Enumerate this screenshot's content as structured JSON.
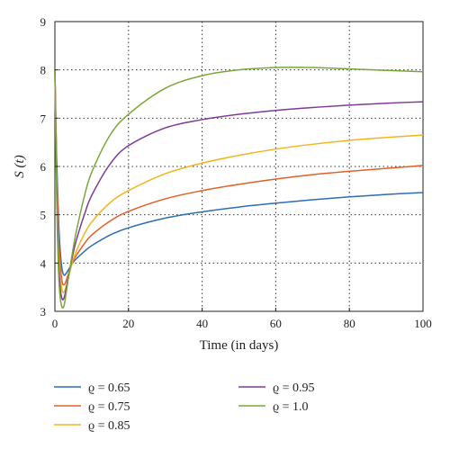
{
  "chart_data": {
    "type": "line",
    "xlabel": "Time (in days)",
    "ylabel": "S (t)",
    "xlim": [
      0,
      100
    ],
    "ylim": [
      3,
      9
    ],
    "xticks": [
      0,
      20,
      40,
      60,
      80,
      100
    ],
    "yticks": [
      3,
      4,
      5,
      6,
      7,
      8,
      9
    ],
    "grid": true,
    "legend_position": "bottom",
    "series": [
      {
        "name": "ϱ = 0.65",
        "color": "#2d6db3",
        "x": [
          0,
          0.5,
          1,
          1.5,
          2,
          2.5,
          3,
          4,
          5,
          6,
          8,
          10,
          15,
          20,
          30,
          40,
          50,
          60,
          70,
          80,
          90,
          100
        ],
        "y": [
          8.0,
          6.1,
          4.9,
          4.2,
          3.85,
          3.75,
          3.78,
          3.9,
          4.02,
          4.1,
          4.24,
          4.36,
          4.58,
          4.73,
          4.93,
          5.06,
          5.16,
          5.24,
          5.31,
          5.37,
          5.42,
          5.46
        ]
      },
      {
        "name": "ϱ = 0.75",
        "color": "#e06028",
        "x": [
          0,
          0.5,
          1,
          1.5,
          2,
          2.5,
          3,
          4,
          5,
          6,
          8,
          10,
          15,
          20,
          30,
          40,
          50,
          60,
          70,
          80,
          90,
          100
        ],
        "y": [
          8.0,
          5.9,
          4.6,
          3.95,
          3.6,
          3.55,
          3.62,
          3.85,
          4.05,
          4.18,
          4.4,
          4.58,
          4.87,
          5.07,
          5.33,
          5.5,
          5.63,
          5.74,
          5.83,
          5.9,
          5.96,
          6.02
        ]
      },
      {
        "name": "ϱ = 0.85",
        "color": "#f2b51e",
        "x": [
          0,
          0.5,
          1,
          1.5,
          2,
          2.5,
          3,
          4,
          5,
          6,
          8,
          10,
          15,
          20,
          30,
          40,
          50,
          60,
          70,
          80,
          90,
          100
        ],
        "y": [
          8.0,
          5.7,
          4.3,
          3.7,
          3.42,
          3.4,
          3.5,
          3.8,
          4.08,
          4.28,
          4.6,
          4.85,
          5.25,
          5.5,
          5.85,
          6.07,
          6.23,
          6.36,
          6.46,
          6.54,
          6.6,
          6.65
        ]
      },
      {
        "name": "ϱ = 0.95",
        "color": "#7f3a98",
        "x": [
          0,
          0.5,
          1,
          1.5,
          2,
          2.5,
          3,
          4,
          5,
          6,
          8,
          10,
          15,
          20,
          30,
          40,
          50,
          60,
          70,
          80,
          90,
          100
        ],
        "y": [
          8.0,
          5.5,
          4.05,
          3.45,
          3.25,
          3.28,
          3.45,
          3.85,
          4.22,
          4.52,
          5.0,
          5.4,
          6.05,
          6.43,
          6.8,
          6.97,
          7.08,
          7.16,
          7.22,
          7.27,
          7.31,
          7.34
        ]
      },
      {
        "name": "ϱ = 1.0",
        "color": "#78a83a",
        "x": [
          0,
          0.5,
          1,
          1.5,
          2,
          2.5,
          3,
          4,
          5,
          6,
          8,
          10,
          15,
          20,
          30,
          40,
          50,
          60,
          70,
          80,
          90,
          100
        ],
        "y": [
          8.0,
          5.3,
          3.8,
          3.25,
          3.08,
          3.12,
          3.35,
          3.85,
          4.32,
          4.72,
          5.38,
          5.88,
          6.65,
          7.08,
          7.62,
          7.88,
          8.0,
          8.05,
          8.05,
          8.02,
          7.99,
          7.96
        ]
      }
    ]
  }
}
